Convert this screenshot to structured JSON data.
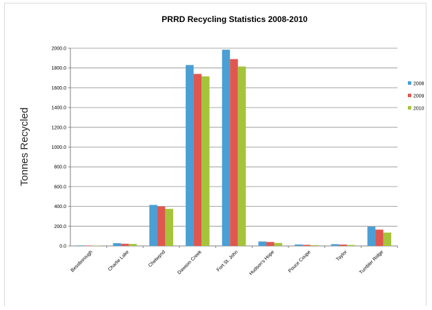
{
  "chart_data": {
    "type": "bar",
    "title": "PRRD Recycling Statistics 2008-2010",
    "xlabel": "",
    "ylabel": "Tonnes Recycled",
    "ylim": [
      0,
      2000
    ],
    "yticks": [
      "0.0",
      "200.0",
      "400.0",
      "600.0",
      "800.0",
      "1000.0",
      "1200.0",
      "1400.0",
      "1600.0",
      "1800.0",
      "2000.0"
    ],
    "grid": true,
    "legend_position": "right",
    "categories": [
      "Bessborough",
      "Charlie Lake",
      "Chetwynd",
      "Dawson Creek",
      "Fort St. John",
      "Hudson's Hope",
      "Pouce Coupe",
      "Taylor",
      "Tumbler Ridge"
    ],
    "series": [
      {
        "name": "2008",
        "color": "#4a9fd5",
        "values": [
          5,
          28,
          415,
          1830,
          1985,
          45,
          15,
          18,
          195
        ]
      },
      {
        "name": "2009",
        "color": "#e0574f",
        "values": [
          4,
          22,
          400,
          1740,
          1890,
          40,
          11,
          14,
          165
        ]
      },
      {
        "name": "2010",
        "color": "#a5c43a",
        "values": [
          3,
          20,
          375,
          1715,
          1815,
          30,
          8,
          10,
          135
        ]
      }
    ]
  }
}
